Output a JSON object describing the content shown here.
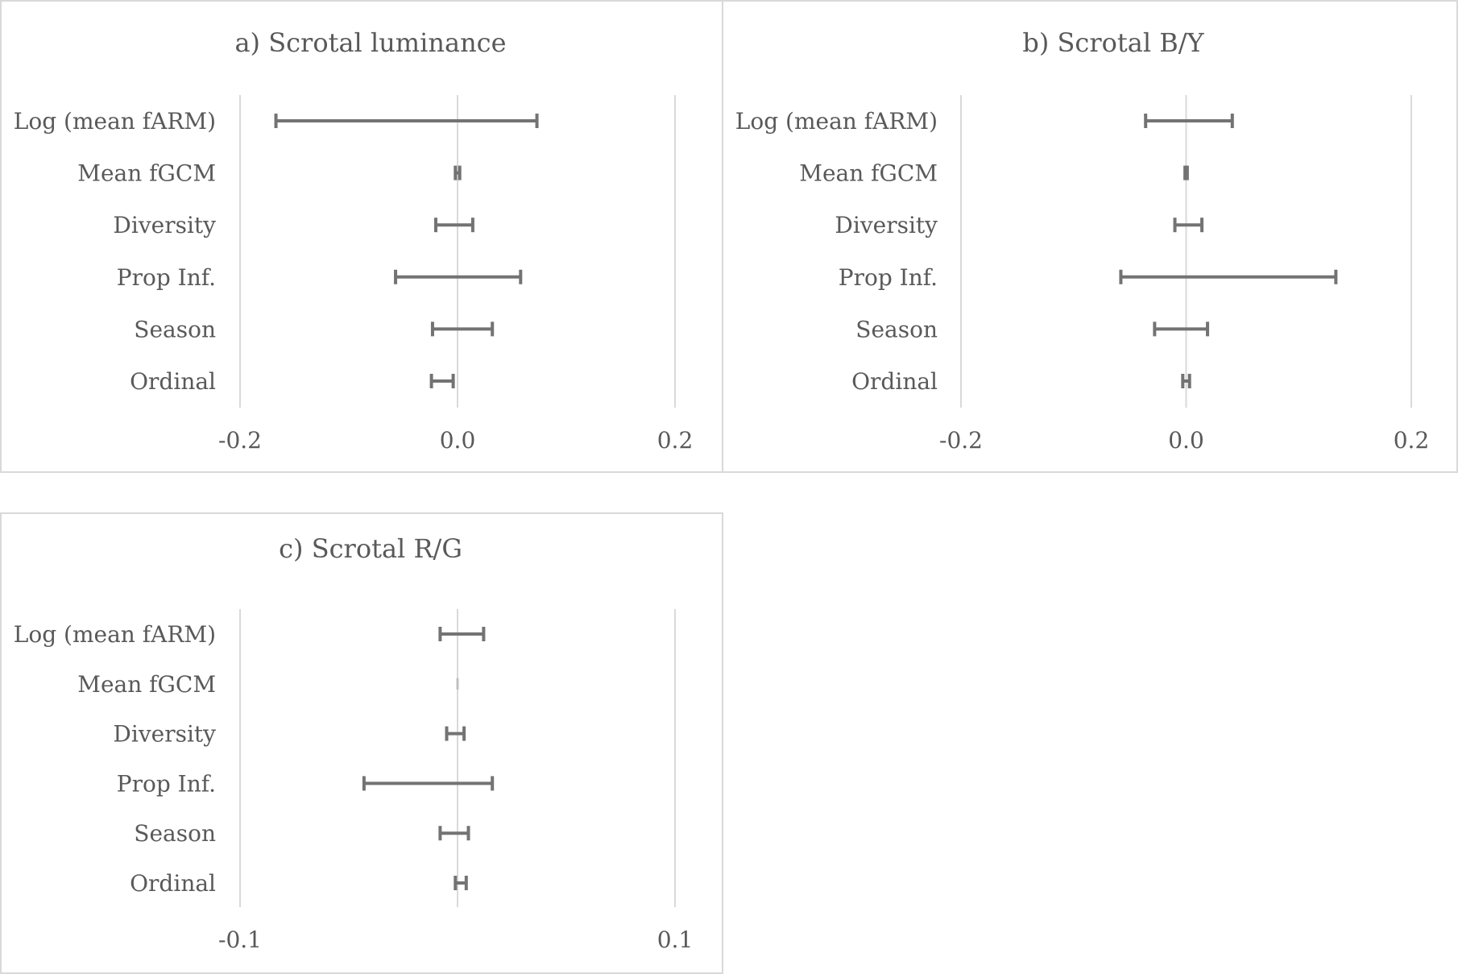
{
  "colors": {
    "bar": "#737373",
    "grid": "#d9d9d9",
    "title": "#595959",
    "label": "#595959",
    "zero": "#bfbfbf"
  },
  "chart_data": [
    {
      "type": "errorbar",
      "title": "a) Scrotal luminance",
      "categories": [
        "Log (mean fARM)",
        "Mean fGCM",
        "Diversity",
        "Prop Inf.",
        "Season",
        "Ordinal"
      ],
      "intervals": [
        [
          -0.167,
          0.073
        ],
        [
          -0.002,
          0.002
        ],
        [
          -0.02,
          0.014
        ],
        [
          -0.057,
          0.058
        ],
        [
          -0.023,
          0.032
        ],
        [
          -0.024,
          -0.004
        ]
      ],
      "xlim": [
        -0.2,
        0.2
      ],
      "xticks": [
        -0.2,
        0.0,
        0.2
      ],
      "tick_labels": [
        "-0.2",
        "0.0",
        "0.2"
      ],
      "grid": true
    },
    {
      "type": "errorbar",
      "title": "b) Scrotal B/Y",
      "categories": [
        "Log (mean fARM)",
        "Mean fGCM",
        "Diversity",
        "Prop Inf.",
        "Season",
        "Ordinal"
      ],
      "intervals": [
        [
          -0.036,
          0.041
        ],
        [
          -0.001,
          0.001
        ],
        [
          -0.01,
          0.014
        ],
        [
          -0.058,
          0.133
        ],
        [
          -0.028,
          0.019
        ],
        [
          -0.003,
          0.003
        ]
      ],
      "xlim": [
        -0.2,
        0.2
      ],
      "xticks": [
        -0.2,
        0.0,
        0.2
      ],
      "tick_labels": [
        "-0.2",
        "0.0",
        "0.2"
      ],
      "grid": true
    },
    {
      "type": "errorbar",
      "title": "c) Scrotal R/G",
      "categories": [
        "Log (mean fARM)",
        "Mean fGCM",
        "Diversity",
        "Prop Inf.",
        "Season",
        "Ordinal"
      ],
      "intervals": [
        [
          -0.008,
          0.012
        ],
        [
          0.0,
          0.0
        ],
        [
          -0.005,
          0.003
        ],
        [
          -0.043,
          0.016
        ],
        [
          -0.008,
          0.005
        ],
        [
          -0.001,
          0.004
        ]
      ],
      "xlim": [
        -0.1,
        0.1
      ],
      "xticks": [
        -0.1,
        0.1
      ],
      "tick_labels": [
        "-0.1",
        "0.1"
      ],
      "grid": true
    }
  ]
}
